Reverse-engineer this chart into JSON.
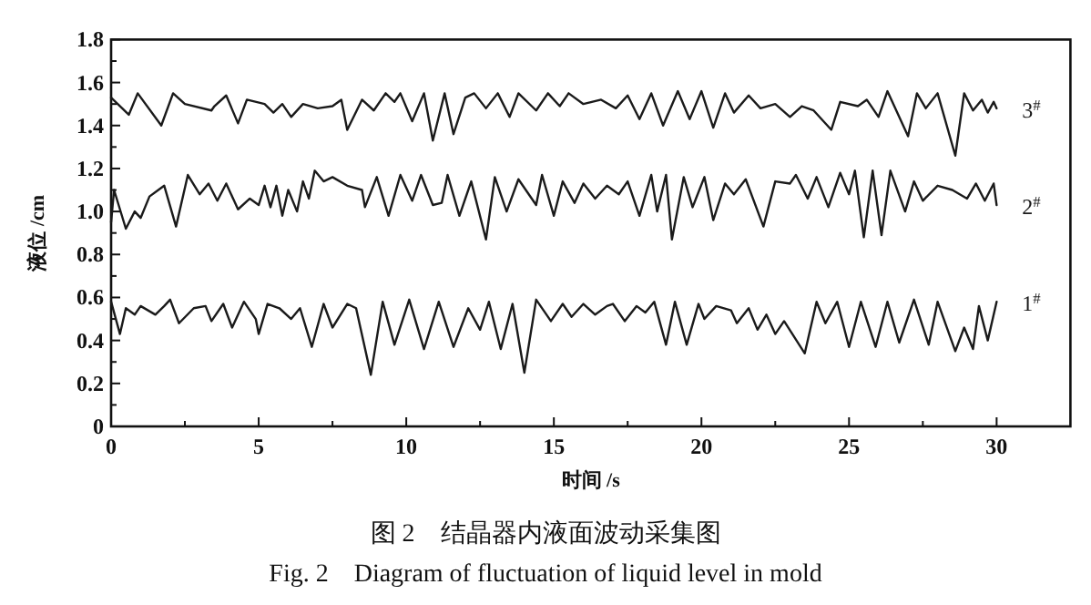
{
  "chart_data": {
    "type": "line",
    "xlabel": "时间 /s",
    "ylabel": "液位 /cm",
    "xlim": [
      0,
      32.5
    ],
    "ylim": [
      0,
      1.8
    ],
    "xticks": [
      0,
      {
        "value": 2.5,
        "label": null
      },
      5,
      {
        "value": 7.5,
        "label": null
      },
      10,
      {
        "value": 12.5,
        "label": null
      },
      15,
      {
        "value": 17.5,
        "label": null
      },
      20,
      {
        "value": 22.5,
        "label": null
      },
      25,
      {
        "value": 27.5,
        "label": null
      },
      30
    ],
    "yticks": [
      0,
      {
        "value": 0.1,
        "label": null
      },
      0.2,
      {
        "value": 0.3,
        "label": null
      },
      0.4,
      {
        "value": 0.5,
        "label": null
      },
      0.6,
      {
        "value": 0.7,
        "label": null
      },
      0.8,
      {
        "value": 0.9,
        "label": null
      },
      {
        "value": 1,
        "label": "1.0"
      },
      {
        "value": 1.1,
        "label": null
      },
      1.2,
      {
        "value": 1.3,
        "label": null
      },
      1.4,
      {
        "value": 1.5,
        "label": null
      },
      1.6,
      {
        "value": 1.7,
        "label": null
      },
      1.8
    ],
    "grid": false,
    "series": [
      {
        "name": "3$^{#}$",
        "color": "#1a1a1a",
        "x": [
          0,
          0.6,
          0.9,
          1.7,
          2.1,
          2.5,
          3.4,
          3.5,
          3.9,
          4.3,
          4.6,
          5.2,
          5.5,
          5.8,
          6.1,
          6.5,
          7,
          7.5,
          7.8,
          8.0,
          8.5,
          8.9,
          9.3,
          9.6,
          9.8,
          10.2,
          10.6,
          10.9,
          11.3,
          11.6,
          12,
          12.3,
          12.7,
          13.1,
          13.5,
          13.8,
          14.4,
          14.8,
          15.2,
          15.5,
          16.0,
          16.6,
          17.1,
          17.5,
          17.9,
          18.3,
          18.7,
          19.2,
          19.6,
          20.0,
          20.4,
          20.8,
          21.1,
          21.6,
          22,
          22.5,
          23.0,
          23.4,
          23.8,
          24.4,
          24.7,
          25.3,
          25.6,
          26,
          26.3,
          27.0,
          27.3,
          27.6,
          28.0,
          28.6,
          28.9,
          29.2,
          29.5,
          29.7,
          29.9,
          30
        ],
        "values": [
          1.53,
          1.45,
          1.55,
          1.4,
          1.55,
          1.5,
          1.47,
          1.49,
          1.54,
          1.41,
          1.52,
          1.5,
          1.46,
          1.5,
          1.44,
          1.5,
          1.48,
          1.49,
          1.52,
          1.38,
          1.52,
          1.47,
          1.55,
          1.51,
          1.55,
          1.42,
          1.55,
          1.33,
          1.55,
          1.36,
          1.53,
          1.55,
          1.48,
          1.55,
          1.44,
          1.55,
          1.47,
          1.55,
          1.49,
          1.55,
          1.5,
          1.52,
          1.48,
          1.54,
          1.43,
          1.55,
          1.4,
          1.56,
          1.43,
          1.56,
          1.39,
          1.55,
          1.46,
          1.54,
          1.48,
          1.5,
          1.44,
          1.49,
          1.47,
          1.38,
          1.51,
          1.49,
          1.52,
          1.44,
          1.56,
          1.35,
          1.55,
          1.48,
          1.55,
          1.26,
          1.55,
          1.47,
          1.52,
          1.46,
          1.51,
          1.48
        ]
      },
      {
        "name": "2$^{#}$",
        "color": "#1a1a1a",
        "x": [
          0,
          0.1,
          0.5,
          0.8,
          1.0,
          1.3,
          1.6,
          1.8,
          2.2,
          2.6,
          3.0,
          3.3,
          3.6,
          3.9,
          4.3,
          4.7,
          5.0,
          5.2,
          5.4,
          5.6,
          5.8,
          6.0,
          6.3,
          6.5,
          6.7,
          6.9,
          7.2,
          7.5,
          8,
          8.5,
          8.6,
          9.0,
          9.4,
          9.8,
          10.2,
          10.5,
          10.9,
          11.2,
          11.4,
          11.8,
          12.2,
          12.7,
          13.0,
          13.4,
          13.8,
          14.4,
          14.6,
          15.0,
          15.3,
          15.7,
          16.0,
          16.4,
          16.8,
          17.2,
          17.5,
          17.9,
          18.3,
          18.5,
          18.8,
          19.0,
          19.4,
          19.7,
          20.1,
          20.4,
          20.8,
          21.1,
          21.5,
          22.1,
          22.5,
          23.0,
          23.2,
          23.6,
          23.9,
          24.3,
          24.7,
          25.0,
          25.2,
          25.5,
          25.8,
          26.1,
          26.4,
          26.9,
          27.2,
          27.5,
          28,
          28.5,
          29.0,
          29.3,
          29.6,
          29.9,
          30
        ],
        "values": [
          0.95,
          1.1,
          0.92,
          1.0,
          0.97,
          1.07,
          1.1,
          1.12,
          0.93,
          1.17,
          1.08,
          1.13,
          1.05,
          1.13,
          1.01,
          1.06,
          1.03,
          1.12,
          1.02,
          1.12,
          0.98,
          1.1,
          1.0,
          1.14,
          1.06,
          1.19,
          1.14,
          1.16,
          1.12,
          1.1,
          1.02,
          1.16,
          0.98,
          1.17,
          1.05,
          1.17,
          1.03,
          1.04,
          1.17,
          0.98,
          1.14,
          0.87,
          1.16,
          1.0,
          1.15,
          1.03,
          1.17,
          0.98,
          1.14,
          1.04,
          1.13,
          1.06,
          1.12,
          1.08,
          1.14,
          0.98,
          1.17,
          1.0,
          1.17,
          0.87,
          1.16,
          1.02,
          1.16,
          0.96,
          1.13,
          1.08,
          1.15,
          0.93,
          1.14,
          1.13,
          1.17,
          1.06,
          1.16,
          1.02,
          1.18,
          1.08,
          1.19,
          0.88,
          1.19,
          0.89,
          1.19,
          1.0,
          1.14,
          1.05,
          1.12,
          1.1,
          1.06,
          1.13,
          1.05,
          1.13,
          1.03
        ]
      },
      {
        "name": "1$^{#}$",
        "color": "#1a1a1a",
        "x": [
          0,
          0.3,
          0.5,
          0.8,
          1.0,
          1.5,
          1.8,
          2.0,
          2.3,
          2.8,
          3.2,
          3.4,
          3.8,
          4.1,
          4.5,
          4.9,
          5.0,
          5.3,
          5.7,
          6.1,
          6.4,
          6.8,
          7.2,
          7.5,
          8.0,
          8.3,
          8.8,
          9.2,
          9.6,
          10.1,
          10.6,
          11.1,
          11.6,
          12.1,
          12.5,
          12.8,
          13.2,
          13.6,
          14.0,
          14.4,
          14.9,
          15.3,
          15.6,
          16.0,
          16.4,
          16.8,
          17.0,
          17.4,
          17.8,
          18.1,
          18.4,
          18.8,
          19.1,
          19.5,
          19.9,
          20.1,
          20.5,
          21.0,
          21.2,
          21.6,
          21.9,
          22.2,
          22.5,
          22.8,
          23.5,
          23.9,
          24.2,
          24.6,
          25.0,
          25.4,
          25.9,
          26.3,
          26.7,
          27.2,
          27.7,
          28.0,
          28.6,
          28.9,
          29.2,
          29.4,
          29.7,
          30
        ],
        "values": [
          0.58,
          0.43,
          0.55,
          0.52,
          0.56,
          0.52,
          0.56,
          0.59,
          0.48,
          0.55,
          0.56,
          0.49,
          0.57,
          0.46,
          0.58,
          0.5,
          0.43,
          0.57,
          0.55,
          0.5,
          0.55,
          0.37,
          0.57,
          0.46,
          0.57,
          0.55,
          0.24,
          0.58,
          0.38,
          0.59,
          0.36,
          0.58,
          0.37,
          0.55,
          0.45,
          0.58,
          0.36,
          0.57,
          0.25,
          0.59,
          0.49,
          0.57,
          0.51,
          0.57,
          0.52,
          0.56,
          0.57,
          0.49,
          0.56,
          0.53,
          0.58,
          0.38,
          0.58,
          0.38,
          0.57,
          0.5,
          0.56,
          0.54,
          0.48,
          0.55,
          0.45,
          0.52,
          0.43,
          0.49,
          0.34,
          0.58,
          0.48,
          0.58,
          0.37,
          0.58,
          0.37,
          0.58,
          0.39,
          0.59,
          0.38,
          0.58,
          0.35,
          0.46,
          0.36,
          0.56,
          0.4,
          0.58
        ]
      }
    ],
    "annotations": [
      "图 2　结晶器内液面波动采集图",
      "Fig. 2　Diagram of fluctuation of liquid level in mold"
    ]
  }
}
